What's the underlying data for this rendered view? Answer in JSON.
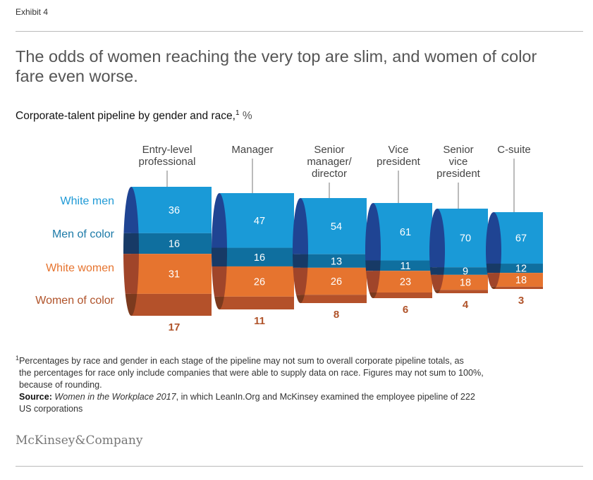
{
  "exhibit_label": "Exhibit 4",
  "title_lines": [
    "The odds of women reaching the very top are slim, and women of color",
    "fare even worse."
  ],
  "subtitle": {
    "text": "Corporate-talent pipeline by gender and race,",
    "note_mark": "1",
    "unit": "%"
  },
  "chart_data": {
    "type": "bar",
    "stacked": true,
    "categories": [
      [
        "Entry-level",
        "professional"
      ],
      [
        "Manager"
      ],
      [
        "Senior",
        "manager/",
        "director"
      ],
      [
        "Vice",
        "president"
      ],
      [
        "Senior",
        "vice",
        "president"
      ],
      [
        "C-suite"
      ]
    ],
    "series": [
      {
        "name": "White men",
        "values": [
          36,
          47,
          54,
          61,
          70,
          67
        ]
      },
      {
        "name": "Men of color",
        "values": [
          16,
          16,
          13,
          11,
          9,
          12
        ]
      },
      {
        "name": "White women",
        "values": [
          31,
          26,
          26,
          23,
          18,
          18
        ]
      },
      {
        "name": "Women of color",
        "values": [
          17,
          11,
          8,
          6,
          4,
          3
        ]
      }
    ],
    "colors": {
      "white_men": "#1a9ad7",
      "men_of_color": "#0f6f9f",
      "white_women": "#e6742f",
      "women_of_color": "#b4512a",
      "white_men_label": "#1f9ad6",
      "men_of_color_label": "#1c7aa8",
      "white_women_label": "#e6742f",
      "women_of_color_label": "#b0532a"
    },
    "legend": "left"
  },
  "footnote": {
    "mark": "1",
    "lines": [
      "Percentages by race and gender in each stage of the pipeline may not sum to overall corporate pipeline totals, as",
      "the percentages for race only include companies that were able to supply data on race. Figures may not sum to 100%,",
      "because of rounding."
    ],
    "source_label": "Source:",
    "source_title": "Women in the Workplace 2017",
    "source_rest_1": ", in which LeanIn.Org and McKinsey examined the employee pipeline of 222",
    "source_rest_2": "US corporations"
  },
  "logo": "McKinsey&Company"
}
